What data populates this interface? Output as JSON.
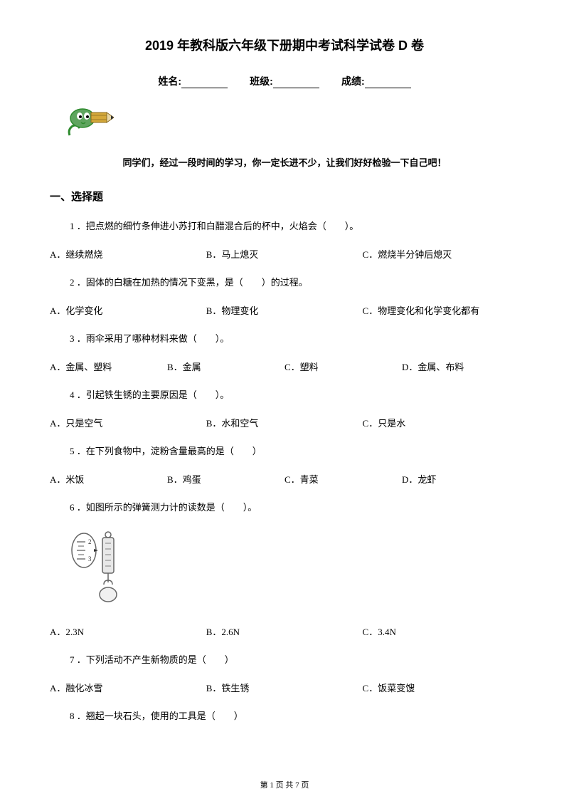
{
  "title": "2019 年教科版六年级下册期中考试科学试卷 D 卷",
  "info": {
    "name_label": "姓名:",
    "class_label": "班级:",
    "score_label": "成绩:"
  },
  "encouragement": "同学们，经过一段时间的学习，你一定长进不少，让我们好好检验一下自己吧！",
  "section1_title": "一、选择题",
  "questions": [
    {
      "num": "1",
      "text": "．把点燃的细竹条伸进小苏打和白醋混合后的杯中，火焰会（　　）。",
      "options": [
        "A．继续燃烧",
        "B．马上熄灭",
        "C．燃烧半分钟后熄灭"
      ],
      "layout": "three"
    },
    {
      "num": "2",
      "text": "．固体的白糖在加热的情况下变黑，是（　　）的过程。",
      "options": [
        "A．化学变化",
        "B．物理变化",
        "C．物理变化和化学变化都有"
      ],
      "layout": "three"
    },
    {
      "num": "3",
      "text": "．雨伞采用了哪种材料来做（　　）。",
      "options": [
        "A．金属、塑料",
        "B．金属",
        "C．塑料",
        "D．金属、布料"
      ],
      "layout": "four"
    },
    {
      "num": "4",
      "text": "．引起铁生锈的主要原因是（　　）。",
      "options": [
        "A．只是空气",
        "B．水和空气",
        "C．只是水"
      ],
      "layout": "three"
    },
    {
      "num": "5",
      "text": "．在下列食物中，淀粉含量最高的是（　　）",
      "options": [
        "A．米饭",
        "B．鸡蛋",
        "C．青菜",
        "D．龙虾"
      ],
      "layout": "four"
    },
    {
      "num": "6",
      "text": "．如图所示的弹簧测力计的读数是（　　）。",
      "options": [
        "A．2.3N",
        "B．2.6N",
        "C．3.4N"
      ],
      "layout": "three",
      "has_image": true
    },
    {
      "num": "7",
      "text": "．下列活动不产生新物质的是（　　）",
      "options": [
        "A．融化冰雪",
        "B．铁生锈",
        "C．饭菜变馊"
      ],
      "layout": "three"
    },
    {
      "num": "8",
      "text": "．翘起一块石头，使用的工具是（　　）",
      "options": [],
      "layout": "none"
    }
  ],
  "footer": "第 1 页 共 7 页",
  "colors": {
    "text": "#000000",
    "background": "#ffffff",
    "pencil_green": "#2e8b2e",
    "pencil_yellow": "#d4a83a"
  }
}
